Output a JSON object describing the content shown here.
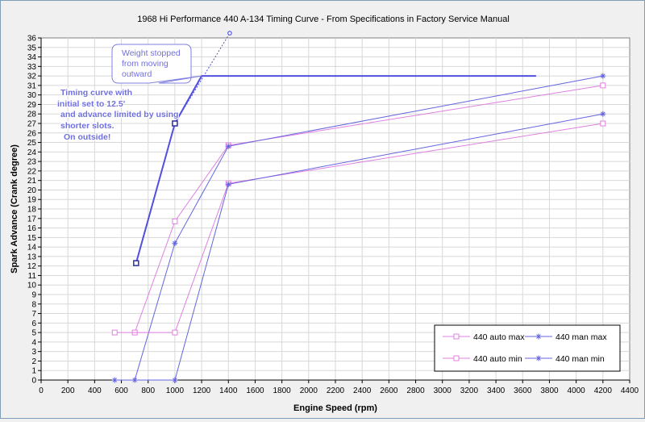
{
  "chart_data": {
    "type": "line",
    "title": "1968 Hi Performance 440 A-134 Timing Curve - From Specifications in Factory Service Manual",
    "xlabel": "Engine Speed (rpm)",
    "ylabel": "Spark Advance (Crank degree)",
    "xlim": [
      0,
      4400
    ],
    "ylim": [
      0,
      36
    ],
    "x_ticks": [
      0,
      200,
      400,
      600,
      800,
      1000,
      1200,
      1400,
      1600,
      1800,
      2000,
      2200,
      2400,
      2600,
      2800,
      3000,
      3200,
      3400,
      3600,
      3800,
      4000,
      4200,
      4400
    ],
    "y_ticks": [
      0,
      1,
      2,
      3,
      4,
      5,
      6,
      7,
      8,
      9,
      10,
      11,
      12,
      13,
      14,
      15,
      16,
      17,
      18,
      19,
      20,
      21,
      22,
      23,
      24,
      25,
      26,
      27,
      28,
      29,
      30,
      31,
      32,
      33,
      34,
      35,
      36
    ],
    "grid": true,
    "legend_position": "bottom-right",
    "series": [
      {
        "name": "440 auto max",
        "color": "#e080e0",
        "marker": "square",
        "points": [
          [
            700,
            5
          ],
          [
            1000,
            16.7
          ],
          [
            1400,
            24.7
          ],
          [
            4200,
            31
          ]
        ]
      },
      {
        "name": "440 man max",
        "color": "#6464e0",
        "marker": "star",
        "points": [
          [
            700,
            0
          ],
          [
            1000,
            14.4
          ],
          [
            1400,
            24.6
          ],
          [
            4200,
            32
          ]
        ]
      },
      {
        "name": "440 auto min",
        "color": "#e080e0",
        "marker": "square",
        "points": [
          [
            550,
            5
          ],
          [
            1000,
            5
          ],
          [
            1400,
            20.7
          ],
          [
            4200,
            27
          ]
        ]
      },
      {
        "name": "440 man min",
        "color": "#6464e0",
        "marker": "star",
        "points": [
          [
            550,
            0
          ],
          [
            1000,
            0
          ],
          [
            1400,
            20.6
          ],
          [
            4200,
            28
          ]
        ]
      }
    ],
    "custom_curve": {
      "name": "Timing curve",
      "color": "#5050dd",
      "points": [
        [
          710,
          12.3
        ],
        [
          1000,
          27
        ],
        [
          1200,
          32
        ],
        [
          3700,
          32
        ]
      ],
      "extrapolated": [
        [
          1000,
          27
        ],
        [
          1410,
          36.5
        ]
      ]
    },
    "annotations": [
      {
        "id": "weight",
        "lines": [
          "Weight stopped",
          "from moving",
          "outward"
        ]
      },
      {
        "id": "curve-note",
        "lines": [
          "Timing curve with",
          "initial set to 12.5'",
          "and advance limited by using",
          "shorter slots.",
          "On outside!"
        ]
      }
    ]
  }
}
